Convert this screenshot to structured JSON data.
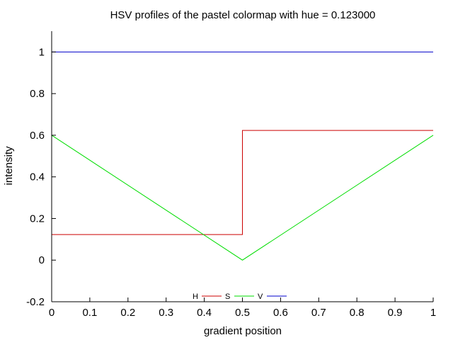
{
  "chart_data": {
    "type": "line",
    "title": "HSV profiles of the pastel colormap with hue = 0.123000",
    "xlabel": "gradient position",
    "ylabel": "intensity",
    "xlim": [
      0,
      1
    ],
    "ylim": [
      -0.2,
      1.1
    ],
    "xticks": [
      "0",
      "0.1",
      "0.2",
      "0.3",
      "0.4",
      "0.5",
      "0.6",
      "0.7",
      "0.8",
      "0.9",
      "1"
    ],
    "yticks": [
      "-0.2",
      "0",
      "0.2",
      "0.4",
      "0.6",
      "0.8",
      "1"
    ],
    "grid": false,
    "legend_position": "bottom-center",
    "series": [
      {
        "name": "H",
        "color": "#cc0000",
        "x": [
          0,
          0.5,
          0.5,
          1
        ],
        "y": [
          0.123,
          0.123,
          0.623,
          0.623
        ]
      },
      {
        "name": "S",
        "color": "#00dd00",
        "x": [
          0,
          0.5,
          1
        ],
        "y": [
          0.6,
          0.0,
          0.6
        ]
      },
      {
        "name": "V",
        "color": "#0000cc",
        "x": [
          0,
          1
        ],
        "y": [
          1.0,
          1.0
        ]
      }
    ]
  }
}
